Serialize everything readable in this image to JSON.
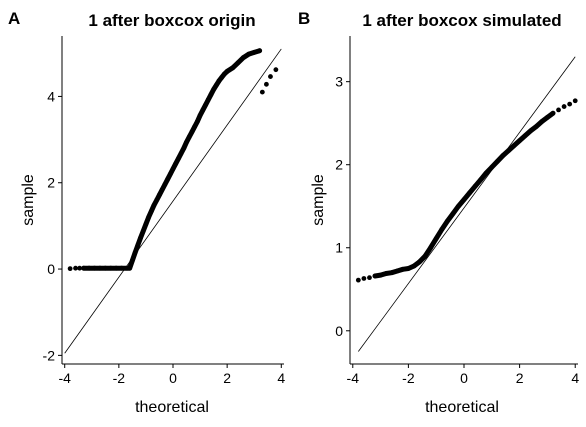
{
  "chart_data": [
    {
      "type": "scatter",
      "panel_label": "A",
      "title": "1 after boxcox origin",
      "xlabel": "theoretical",
      "ylabel": "sample",
      "xlim": [
        -4.1,
        4.1
      ],
      "ylim": [
        -2.2,
        5.4
      ],
      "x_ticks": [
        -4,
        -2,
        0,
        2,
        4
      ],
      "y_ticks": [
        -2,
        0,
        2,
        4
      ],
      "grid": false,
      "reference_line": {
        "x": [
          -4.0,
          4.0
        ],
        "y": [
          -1.95,
          5.1
        ]
      },
      "points": [
        [
          -3.8,
          0.01
        ],
        [
          -3.6,
          0.02
        ],
        [
          -3.45,
          0.02
        ],
        [
          -3.3,
          0.02
        ],
        [
          -3.1,
          0.02
        ],
        [
          -2.9,
          0.02
        ],
        [
          -2.7,
          0.02
        ],
        [
          -2.5,
          0.02
        ],
        [
          -2.3,
          0.02
        ],
        [
          -2.1,
          0.02
        ],
        [
          -1.9,
          0.02
        ],
        [
          -1.7,
          0.02
        ],
        [
          -1.6,
          0.02
        ],
        [
          -1.5,
          0.2
        ],
        [
          -1.4,
          0.38
        ],
        [
          -1.3,
          0.55
        ],
        [
          -1.2,
          0.72
        ],
        [
          -1.1,
          0.88
        ],
        [
          -1.0,
          1.04
        ],
        [
          -0.9,
          1.2
        ],
        [
          -0.8,
          1.34
        ],
        [
          -0.7,
          1.48
        ],
        [
          -0.6,
          1.6
        ],
        [
          -0.5,
          1.72
        ],
        [
          -0.4,
          1.84
        ],
        [
          -0.3,
          1.96
        ],
        [
          -0.2,
          2.08
        ],
        [
          -0.1,
          2.2
        ],
        [
          0.0,
          2.32
        ],
        [
          0.1,
          2.44
        ],
        [
          0.2,
          2.56
        ],
        [
          0.3,
          2.68
        ],
        [
          0.4,
          2.8
        ],
        [
          0.5,
          2.94
        ],
        [
          0.6,
          3.06
        ],
        [
          0.7,
          3.18
        ],
        [
          0.8,
          3.3
        ],
        [
          0.9,
          3.42
        ],
        [
          1.0,
          3.56
        ],
        [
          1.1,
          3.68
        ],
        [
          1.2,
          3.8
        ],
        [
          1.3,
          3.92
        ],
        [
          1.4,
          4.04
        ],
        [
          1.5,
          4.16
        ],
        [
          1.6,
          4.26
        ],
        [
          1.7,
          4.36
        ],
        [
          1.8,
          4.44
        ],
        [
          1.9,
          4.52
        ],
        [
          2.0,
          4.58
        ],
        [
          2.2,
          4.66
        ],
        [
          2.4,
          4.78
        ],
        [
          2.6,
          4.9
        ],
        [
          2.8,
          4.98
        ],
        [
          3.0,
          5.02
        ],
        [
          3.2,
          5.06
        ],
        [
          3.3,
          4.1
        ],
        [
          3.45,
          4.28
        ],
        [
          3.6,
          4.46
        ],
        [
          3.8,
          4.62
        ]
      ]
    },
    {
      "type": "scatter",
      "panel_label": "B",
      "title": "1 after boxcox simulated",
      "xlabel": "theoretical",
      "ylabel": "sample",
      "xlim": [
        -4.1,
        4.1
      ],
      "ylim": [
        -0.4,
        3.55
      ],
      "x_ticks": [
        -4,
        -2,
        0,
        2,
        4
      ],
      "y_ticks": [
        0,
        1,
        2,
        3
      ],
      "grid": false,
      "reference_line": {
        "x": [
          -3.8,
          4.0
        ],
        "y": [
          -0.25,
          3.3
        ]
      },
      "points": [
        [
          -3.8,
          0.61
        ],
        [
          -3.6,
          0.63
        ],
        [
          -3.4,
          0.64
        ],
        [
          -3.2,
          0.66
        ],
        [
          -3.0,
          0.67
        ],
        [
          -2.8,
          0.69
        ],
        [
          -2.6,
          0.7
        ],
        [
          -2.4,
          0.72
        ],
        [
          -2.2,
          0.74
        ],
        [
          -2.0,
          0.75
        ],
        [
          -1.8,
          0.78
        ],
        [
          -1.6,
          0.83
        ],
        [
          -1.4,
          0.9
        ],
        [
          -1.2,
          1.0
        ],
        [
          -1.0,
          1.11
        ],
        [
          -0.8,
          1.22
        ],
        [
          -0.6,
          1.32
        ],
        [
          -0.4,
          1.41
        ],
        [
          -0.2,
          1.5
        ],
        [
          0.0,
          1.58
        ],
        [
          0.2,
          1.66
        ],
        [
          0.4,
          1.74
        ],
        [
          0.6,
          1.82
        ],
        [
          0.8,
          1.9
        ],
        [
          1.0,
          1.97
        ],
        [
          1.2,
          2.04
        ],
        [
          1.4,
          2.11
        ],
        [
          1.6,
          2.17
        ],
        [
          1.8,
          2.23
        ],
        [
          2.0,
          2.29
        ],
        [
          2.2,
          2.35
        ],
        [
          2.4,
          2.41
        ],
        [
          2.6,
          2.46
        ],
        [
          2.8,
          2.52
        ],
        [
          3.0,
          2.57
        ],
        [
          3.2,
          2.62
        ],
        [
          3.4,
          2.66
        ],
        [
          3.6,
          2.7
        ],
        [
          3.8,
          2.73
        ],
        [
          4.0,
          2.77
        ]
      ]
    }
  ]
}
